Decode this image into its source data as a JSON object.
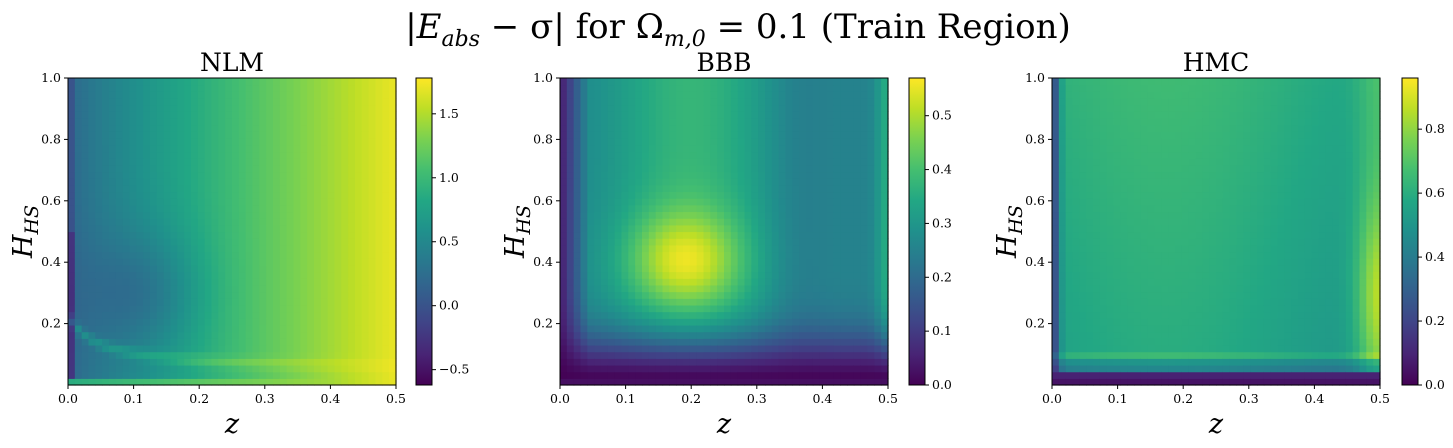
{
  "figure": {
    "title": "|E_abs − σ| for Ω_m,0 = 0.1 (Train Region)"
  },
  "chart_data": [
    {
      "type": "heatmap",
      "title": "NLM",
      "xlabel": "z",
      "ylabel": "H_HS",
      "xlim": [
        0.0,
        0.5
      ],
      "ylim": [
        0.0,
        1.0
      ],
      "xticks": [
        "0.0",
        "0.1",
        "0.2",
        "0.3",
        "0.4",
        "0.5"
      ],
      "yticks": [
        "0.2",
        "0.4",
        "0.6",
        "0.8",
        "1.0"
      ],
      "colormap": "viridis",
      "colorbar": {
        "range": [
          -0.62,
          1.78
        ],
        "ticks": [
          "−0.5",
          "0.0",
          "0.5",
          "1.0",
          "1.5"
        ]
      }
    },
    {
      "type": "heatmap",
      "title": "BBB",
      "xlabel": "z",
      "ylabel": "H_HS",
      "xlim": [
        0.0,
        0.5
      ],
      "ylim": [
        0.0,
        1.0
      ],
      "xticks": [
        "0.0",
        "0.1",
        "0.2",
        "0.3",
        "0.4",
        "0.5"
      ],
      "yticks": [
        "0.2",
        "0.4",
        "0.6",
        "0.8",
        "1.0"
      ],
      "colormap": "viridis",
      "colorbar": {
        "range": [
          0.0,
          0.57
        ],
        "ticks": [
          "0.0",
          "0.1",
          "0.2",
          "0.3",
          "0.4",
          "0.5"
        ]
      }
    },
    {
      "type": "heatmap",
      "title": "HMC",
      "xlabel": "z",
      "ylabel": "H_HS",
      "xlim": [
        0.0,
        0.5
      ],
      "ylim": [
        0.0,
        1.0
      ],
      "xticks": [
        "0.0",
        "0.1",
        "0.2",
        "0.3",
        "0.4",
        "0.5"
      ],
      "yticks": [
        "0.2",
        "0.4",
        "0.6",
        "0.8",
        "1.0"
      ],
      "colormap": "viridis",
      "colorbar": {
        "range": [
          0.0,
          0.96
        ],
        "ticks": [
          "0.0",
          "0.2",
          "0.4",
          "0.6",
          "0.8"
        ]
      }
    }
  ]
}
